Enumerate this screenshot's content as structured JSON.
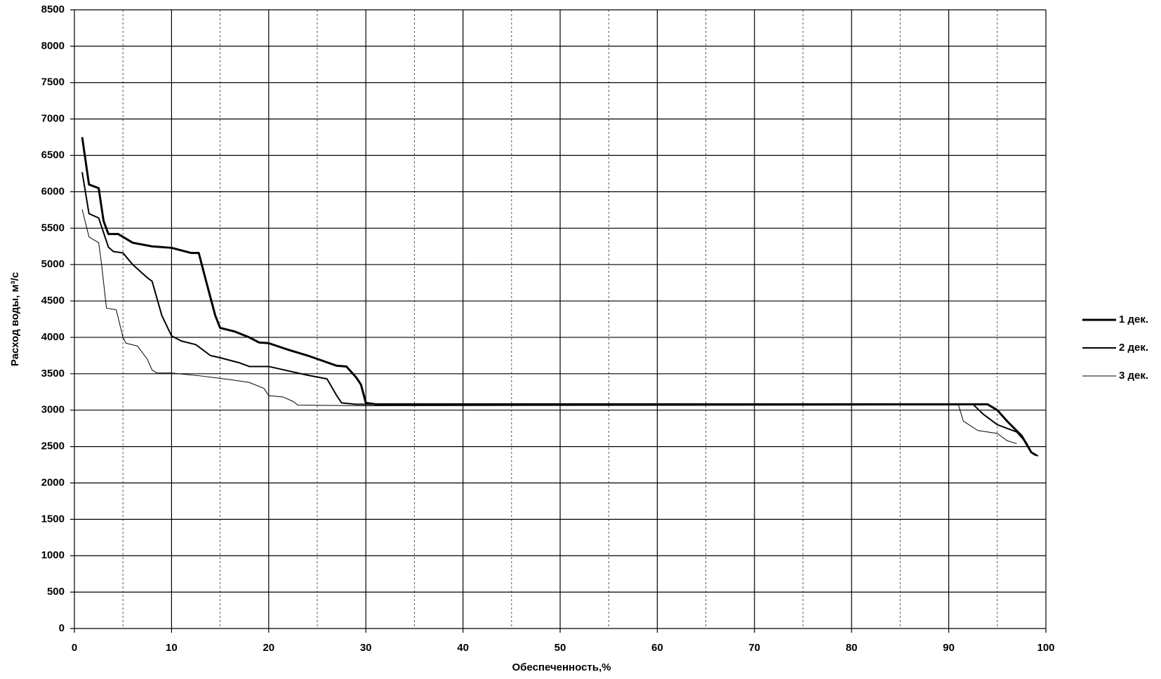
{
  "chart_data": {
    "type": "line",
    "x_label": "Обеспеченность,%",
    "y_label": "Расход воды, м³/с",
    "xlim": [
      0,
      100
    ],
    "xticks": [
      0,
      10,
      20,
      30,
      40,
      50,
      60,
      70,
      80,
      90,
      100
    ],
    "x_minor_grid": [
      5,
      15,
      25,
      35,
      45,
      55,
      65,
      75,
      85,
      95
    ],
    "ylim": [
      0,
      8500
    ],
    "yticks": [
      0,
      500,
      1000,
      1500,
      2000,
      2500,
      3000,
      3500,
      4000,
      4500,
      5000,
      5500,
      6000,
      6500,
      7000,
      7500,
      8000,
      8500
    ],
    "grid": true,
    "legend": "right",
    "series": [
      {
        "name": "1 дек.",
        "color": "#000000",
        "width": 3,
        "x": [
          0.8,
          1.5,
          2.5,
          3,
          3.5,
          4.5,
          6,
          8,
          10,
          12,
          12.8,
          13.5,
          14.5,
          15,
          16.5,
          18,
          19,
          20,
          22,
          24,
          25.5,
          27,
          28,
          29,
          29.5,
          30,
          31,
          91,
          94,
          95,
          96,
          97.5,
          98.5,
          99
        ],
        "values": [
          6750,
          6100,
          6050,
          5600,
          5420,
          5420,
          5300,
          5250,
          5230,
          5160,
          5160,
          4800,
          4300,
          4130,
          4080,
          4000,
          3930,
          3920,
          3830,
          3750,
          3680,
          3610,
          3600,
          3450,
          3350,
          3100,
          3080,
          3080,
          3080,
          3000,
          2850,
          2650,
          2420,
          2380
        ]
      },
      {
        "name": "2 дек.",
        "color": "#000000",
        "width": 2,
        "x": [
          0.8,
          1.5,
          2.5,
          3.5,
          4,
          5,
          6,
          7.5,
          8,
          9,
          10,
          11,
          12.5,
          14,
          15,
          17,
          18,
          20,
          22,
          24,
          26,
          27,
          27.5,
          29,
          91,
          92.5,
          93.5,
          95,
          97,
          98,
          98.5,
          99.2
        ],
        "values": [
          6270,
          5700,
          5640,
          5240,
          5180,
          5160,
          5000,
          4820,
          4770,
          4300,
          4020,
          3950,
          3900,
          3750,
          3720,
          3650,
          3600,
          3600,
          3540,
          3480,
          3430,
          3200,
          3100,
          3080,
          3080,
          3080,
          2950,
          2800,
          2700,
          2550,
          2420,
          2370
        ]
      },
      {
        "name": "3 дек.",
        "color": "#000000",
        "width": 1,
        "x": [
          0.8,
          1.5,
          2.5,
          2.8,
          3.3,
          4.3,
          5,
          5.3,
          6.5,
          7.5,
          8,
          8.5,
          10,
          13,
          16,
          18,
          19.5,
          20,
          21.5,
          22.5,
          23,
          30,
          91,
          91.5,
          93,
          95,
          96,
          97
        ],
        "values": [
          5760,
          5380,
          5300,
          5000,
          4400,
          4380,
          4000,
          3920,
          3880,
          3700,
          3550,
          3510,
          3510,
          3470,
          3420,
          3380,
          3300,
          3200,
          3180,
          3120,
          3070,
          3060,
          3070,
          2850,
          2720,
          2680,
          2580,
          2540
        ]
      }
    ]
  }
}
